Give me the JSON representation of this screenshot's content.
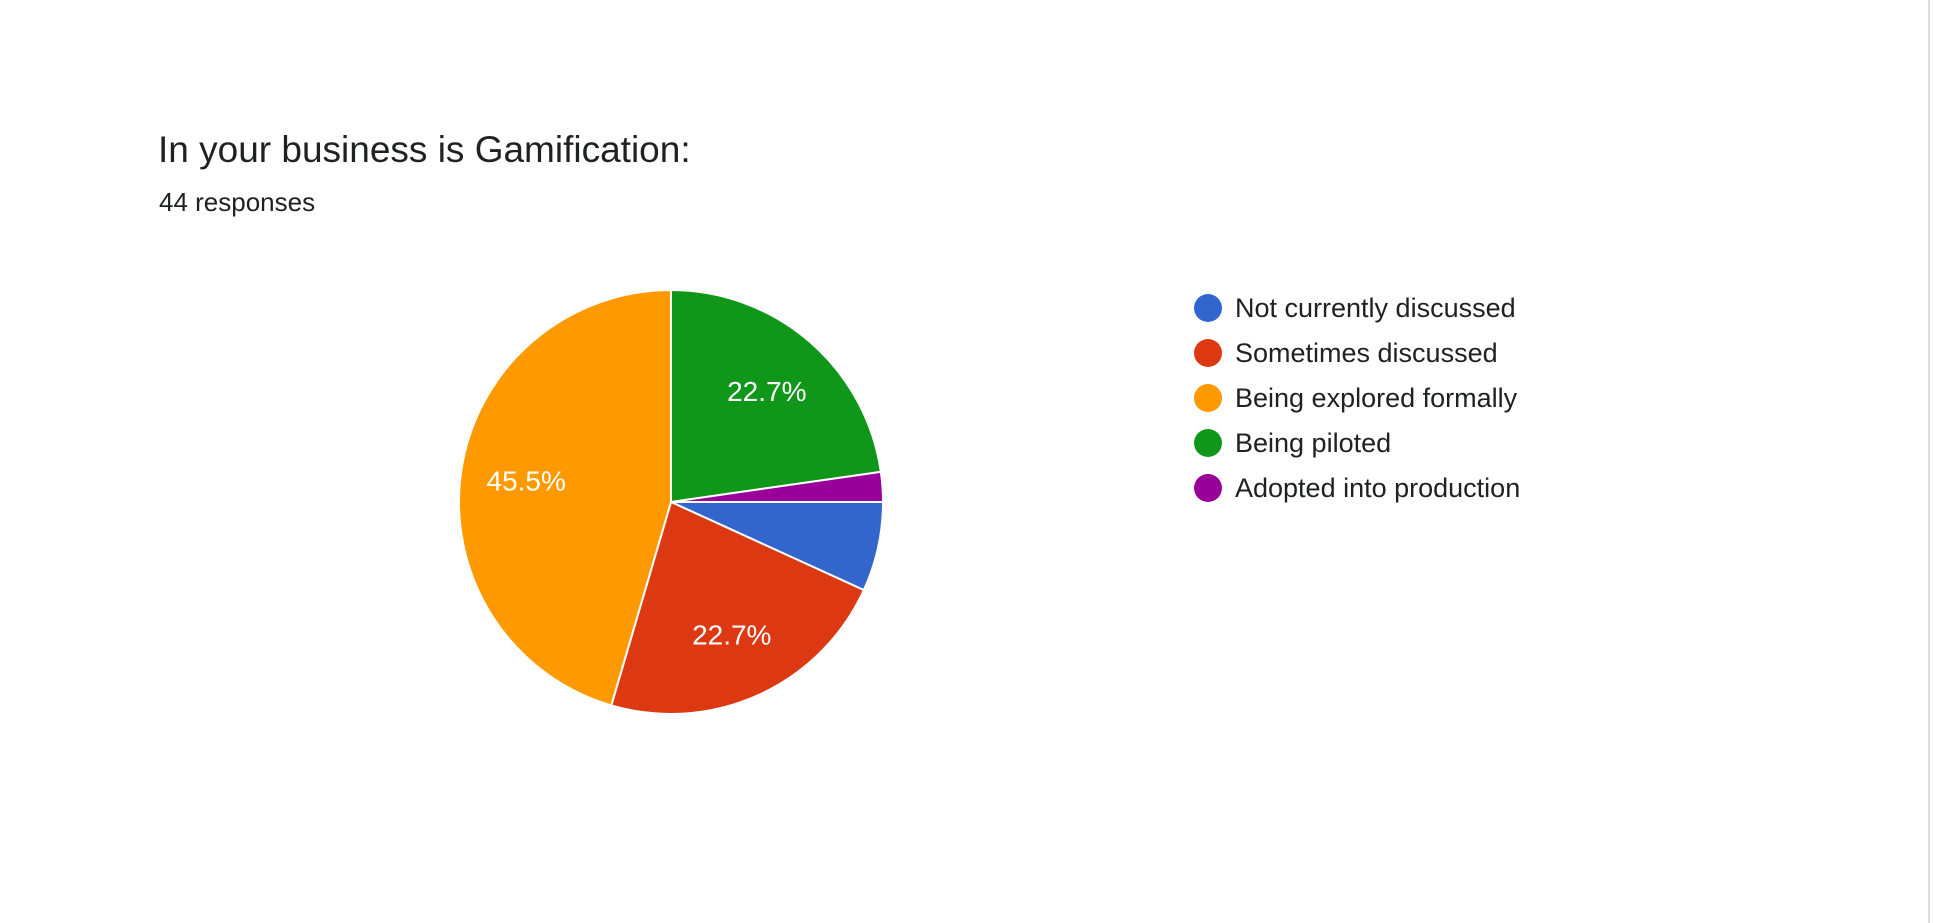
{
  "card": {
    "title": "In your business is Gamification:",
    "responses": "44 responses"
  },
  "chart_data": {
    "type": "pie",
    "title": "In your business is Gamification:",
    "subtitle": "44 responses",
    "total": 44,
    "legend_position": "right",
    "start": "3 o'clock",
    "direction": "clockwise",
    "slices": [
      {
        "name": "Not currently discussed",
        "count": 3,
        "percent": 6.8,
        "label": "",
        "color": "#3366cc"
      },
      {
        "name": "Sometimes discussed",
        "count": 10,
        "percent": 22.7,
        "label": "22.7%",
        "color": "#dc3912"
      },
      {
        "name": "Being explored formally",
        "count": 20,
        "percent": 45.5,
        "label": "45.5%",
        "color": "#ff9900"
      },
      {
        "name": "Being piloted",
        "count": 10,
        "percent": 22.7,
        "label": "22.7%",
        "color": "#109618"
      },
      {
        "name": "Adopted into production",
        "count": 1,
        "percent": 2.3,
        "label": "",
        "color": "#990099"
      }
    ]
  }
}
